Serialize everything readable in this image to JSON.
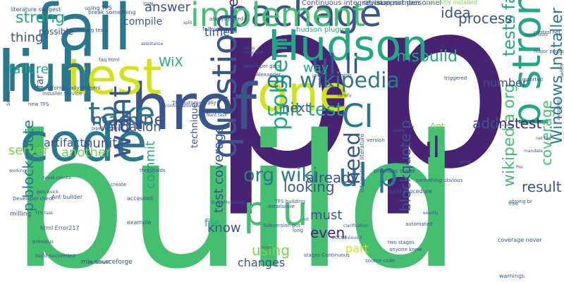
{
  "word_cloud": {
    "palette": {
      "dark_purple": "#482374",
      "blue": "#3a548c",
      "teal": "#2a788e",
      "green_teal": "#22a884",
      "green": "#44bf70",
      "light_green": "#7ad151",
      "yellow": "#d2e21b",
      "background": "#ffffff"
    },
    "words": [
      {
        "text": "p",
        "color": "#482374"
      },
      {
        "text": "p",
        "color": "#482374"
      },
      {
        "text": "build",
        "color": "#44bf70"
      },
      {
        "text": "li li",
        "color": "#2a788e"
      },
      {
        "text": "fail",
        "color": "#2a788e"
      },
      {
        "text": "code",
        "color": "#2a788e"
      },
      {
        "text": "href",
        "color": "#3a548c"
      },
      {
        "text": "project",
        "color": "#2a788e"
      },
      {
        "text": "test",
        "color": "#d2e21b"
      },
      {
        "text": "run",
        "color": "#2a788e"
      },
      {
        "text": "one",
        "color": "#d2e21b"
      },
      {
        "text": "package",
        "color": "#3a548c"
      },
      {
        "text": "p ul",
        "color": "#44bf70"
      },
      {
        "text": "Hudson",
        "color": "#22a884"
      },
      {
        "text": "implement",
        "color": "#44bf70"
      },
      {
        "text": "p strong",
        "color": "#22a884"
      },
      {
        "text": "question",
        "color": "#3a548c"
      },
      {
        "text": "ul p",
        "color": "#2a788e"
      },
      {
        "text": "ul li",
        "color": "#3a548c"
      },
      {
        "text": "CI",
        "color": "#2a788e"
      },
      {
        "text": "take",
        "color": "#2a788e"
      },
      {
        "text": "want",
        "color": "#3a548c"
      },
      {
        "text": "Currently",
        "color": "#7ad151"
      },
      {
        "text": "li ul",
        "color": "#482374"
      },
      {
        "text": "problem",
        "color": "#22a884"
      },
      {
        "text": "en wikipedia",
        "color": "#2a788e"
      },
      {
        "text": "unit test",
        "color": "#22a884"
      },
      {
        "text": "org wiki",
        "color": "#2a788e"
      },
      {
        "text": "wikipedia org",
        "color": "#44bf70"
      },
      {
        "text": "Windows Installer",
        "color": "#2a788e"
      },
      {
        "text": "p blockquote",
        "color": "#2a788e"
      },
      {
        "text": "machine",
        "color": "#3a548c"
      },
      {
        "text": "tests fail",
        "color": "#22a884"
      },
      {
        "text": "msbuild",
        "color": "#22a884"
      },
      {
        "text": "strong",
        "color": "#22a884"
      },
      {
        "text": "add",
        "color": "#3a548c"
      },
      {
        "text": "mstest",
        "color": "#482374"
      },
      {
        "text": "coverage",
        "color": "#44bf70"
      },
      {
        "text": "result",
        "color": "#3a548c"
      },
      {
        "text": "blockquote p",
        "color": "#3a548c"
      },
      {
        "text": "already",
        "color": "#3a548c"
      },
      {
        "text": "need",
        "color": "#3a548c"
      },
      {
        "text": "using",
        "color": "#7ad151"
      },
      {
        "text": "even",
        "color": "#482374"
      },
      {
        "text": "looking",
        "color": "#3a548c"
      },
      {
        "text": "idea",
        "color": "#3a548c"
      },
      {
        "text": "process",
        "color": "#3a548c"
      },
      {
        "text": "way",
        "color": "#22a884"
      },
      {
        "text": "must",
        "color": "#3a548c"
      },
      {
        "text": "next",
        "color": "#3a548c"
      },
      {
        "text": "know",
        "color": "#3a548c"
      },
      {
        "text": "part",
        "color": "#d2e21b"
      },
      {
        "text": "changes",
        "color": "#3a548c"
      },
      {
        "text": "commit",
        "color": "#22a884"
      },
      {
        "text": "validation",
        "color": "#3a548c"
      },
      {
        "text": "nunit",
        "color": "#3a548c"
      },
      {
        "text": "server",
        "color": "#7ad151"
      },
      {
        "text": "another",
        "color": "#7ad151"
      },
      {
        "text": "thing",
        "color": "#3a548c"
      },
      {
        "text": "failure",
        "color": "#22a884"
      },
      {
        "text": "possible",
        "color": "#3a548c"
      },
      {
        "text": "far",
        "color": "#3a548c"
      },
      {
        "text": "artifacts",
        "color": "#3a548c"
      },
      {
        "text": "WiX",
        "color": "#22a884"
      },
      {
        "text": "time",
        "color": "#3a548c"
      },
      {
        "text": "compile",
        "color": "#3a548c"
      },
      {
        "text": "answer",
        "color": "#3a548c"
      },
      {
        "text": "em",
        "color": "#482374"
      },
      {
        "text": "test coverage",
        "color": "#3a548c"
      },
      {
        "text": "file",
        "color": "#22a884"
      },
      {
        "text": "number",
        "color": "#3a548c"
      },
      {
        "text": "Ant",
        "color": "#7ad151"
      },
      {
        "text": "technique",
        "color": "#3a548c"
      },
      {
        "text": "hudson plugin",
        "color": "#22a884"
      },
      {
        "text": "Continuous integration",
        "color": "#3a548c"
      },
      {
        "text": "support personnel",
        "color": "#3a548c"
      },
      {
        "text": "revision number",
        "color": "#3a548c"
      },
      {
        "text": "correctly installed",
        "color": "#7ad151"
      },
      {
        "text": "literature suggest",
        "color": "#3a548c"
      },
      {
        "text": "break something",
        "color": "#3a548c"
      },
      {
        "text": "using TFS",
        "color": "#3a548c"
      },
      {
        "text": "split",
        "color": "#3a548c"
      },
      {
        "text": "always tested",
        "color": "#3a548c"
      },
      {
        "text": "consuming tests",
        "color": "#3a548c"
      },
      {
        "text": "assistance",
        "color": "#3a548c"
      },
      {
        "text": "following",
        "color": "#3a548c"
      },
      {
        "text": "faq html",
        "color": "#3a548c"
      },
      {
        "text": "solve",
        "color": "#3a548c"
      },
      {
        "text": "automatically triggers",
        "color": "#3a548c"
      },
      {
        "text": "Installer Service",
        "color": "#3a548c"
      },
      {
        "text": "new TFS",
        "color": "#3a548c"
      },
      {
        "text": "java consuming",
        "color": "#3a548c"
      },
      {
        "text": "developer gets",
        "color": "#3a548c"
      },
      {
        "text": "Alexander",
        "color": "#3a548c"
      },
      {
        "text": "setup",
        "color": "#3a548c"
      },
      {
        "text": "complete",
        "color": "#3a548c"
      },
      {
        "text": "triggered",
        "color": "#3a548c"
      },
      {
        "text": "control net",
        "color": "#3a548c"
      },
      {
        "text": "basic tests",
        "color": "#3a548c"
      },
      {
        "text": "major project",
        "color": "#3a548c"
      },
      {
        "text": "reported",
        "color": "#3a548c"
      },
      {
        "text": "switch",
        "color": "#3a548c"
      },
      {
        "text": "exception",
        "color": "#3a548c"
      },
      {
        "text": "TFS automatically",
        "color": "#3a548c"
      },
      {
        "text": "configuration page",
        "color": "#3a548c"
      },
      {
        "text": "Nant task",
        "color": "#3a548c"
      },
      {
        "text": "Developer check",
        "color": "#3a548c"
      },
      {
        "text": "milling",
        "color": "#3a548c"
      },
      {
        "text": "Ant builder",
        "color": "#3a548c"
      },
      {
        "text": "pipeline using",
        "color": "#3a548c"
      },
      {
        "text": "create",
        "color": "#3a548c"
      },
      {
        "text": "thresholds",
        "color": "#3a548c"
      },
      {
        "text": "accessed",
        "color": "#3a548c"
      },
      {
        "text": "example",
        "color": "#3a548c"
      },
      {
        "text": "mix sourceforge",
        "color": "#3a548c"
      },
      {
        "text": "increment",
        "color": "#3a548c"
      },
      {
        "text": "build succeeded",
        "color": "#3a548c"
      },
      {
        "text": "previous",
        "color": "#3a548c"
      },
      {
        "text": "TFS task",
        "color": "#3a548c"
      },
      {
        "text": "html Error217",
        "color": "#3a548c"
      },
      {
        "text": "coverage never",
        "color": "#3a548c"
      },
      {
        "text": "warnings",
        "color": "#3a548c"
      },
      {
        "text": "occur",
        "color": "#3a548c"
      },
      {
        "text": "build procedure",
        "color": "#3a548c"
      },
      {
        "text": "integration literature",
        "color": "#3a548c"
      },
      {
        "text": "previous stage",
        "color": "#3a548c"
      },
      {
        "text": "TFS building",
        "color": "#3a548c"
      },
      {
        "text": "Build Properties",
        "color": "#3a548c"
      },
      {
        "text": "net faq",
        "color": "#3a548c"
      },
      {
        "text": "mandate",
        "color": "#3a548c"
      },
      {
        "text": "strong br",
        "color": "#3a548c"
      },
      {
        "text": "two stages",
        "color": "#3a548c"
      },
      {
        "text": "anyone know",
        "color": "#3a548c"
      },
      {
        "text": "stages Continuous",
        "color": "#3a548c"
      },
      {
        "text": "source code",
        "color": "#3a548c"
      },
      {
        "text": "obvious li",
        "color": "#3a548c"
      },
      {
        "text": "Subversion put",
        "color": "#3a548c"
      },
      {
        "text": "SVN",
        "color": "#3a548c"
      },
      {
        "text": "error",
        "color": "#3a548c"
      },
      {
        "text": "something obvious",
        "color": "#3a548c"
      },
      {
        "text": "clarification",
        "color": "#3a548c"
      },
      {
        "text": "automated",
        "color": "#3a548c"
      },
      {
        "text": "every",
        "color": "#3a548c"
      },
      {
        "text": "long",
        "color": "#3a548c"
      },
      {
        "text": "lot",
        "color": "#3a548c"
      },
      {
        "text": "sure",
        "color": "#3a548c"
      },
      {
        "text": "details",
        "color": "#3a548c"
      },
      {
        "text": "seen",
        "color": "#3a548c"
      },
      {
        "text": "variety",
        "color": "#3a548c"
      },
      {
        "text": "use",
        "color": "#3a548c"
      },
      {
        "text": "version",
        "color": "#3a548c"
      },
      {
        "text": "free",
        "color": "#3a548c"
      },
      {
        "text": "Pro",
        "color": "#3a548c"
      },
      {
        "text": "exactly",
        "color": "#3a548c"
      },
      {
        "text": "working",
        "color": "#3a548c"
      },
      {
        "text": "break minute",
        "color": "#3a548c"
      },
      {
        "text": "gets quick",
        "color": "#3a548c"
      },
      {
        "text": "set",
        "color": "#3a548c"
      },
      {
        "text": "works",
        "color": "#3a548c"
      },
      {
        "text": "try",
        "color": "#3a548c"
      }
    ]
  }
}
